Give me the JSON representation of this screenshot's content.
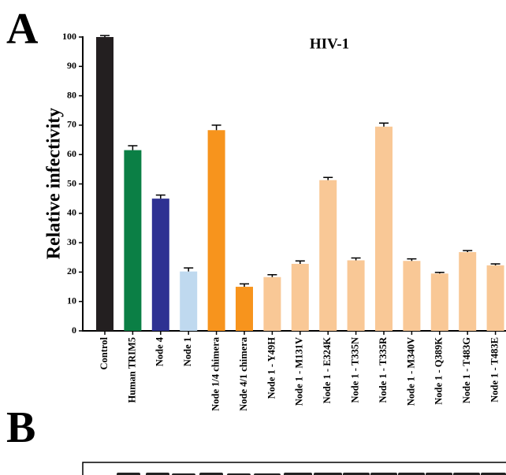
{
  "panel_labels": [
    "A",
    "B"
  ],
  "chart_data": {
    "type": "bar",
    "title": "HIV-1",
    "y_label": "Relative infectivity",
    "categories": [
      "Control",
      "Human TRIM5",
      "Node 4",
      "Node 1",
      "Node 1/4 chimera",
      "Node 4/1 chimera",
      "Node 1 - Y49H",
      "Node 1 - M131V",
      "Node 1 - E324K",
      "Node 1 - T335N",
      "Node 1 - T335R",
      "Node 1 - M340V",
      "Node 1 - Q389K",
      "Node 1 - T483G",
      "Node 1 - T483E"
    ],
    "values": [
      100,
      61.5,
      45,
      20.2,
      68.3,
      15,
      18.3,
      22.8,
      51.3,
      24,
      69.5,
      23.8,
      19.5,
      26.8,
      22.3
    ],
    "errors": [
      0.5,
      1.5,
      1.2,
      1.2,
      1.7,
      1,
      0.8,
      1,
      0.9,
      0.8,
      1.2,
      0.7,
      0.4,
      0.5,
      0.5
    ],
    "colors": [
      "#231f20",
      "#0b7f45",
      "#2e3192",
      "#bfd9ef",
      "#f7941d",
      "#f7941d",
      "#f9c896",
      "#f9c896",
      "#f9c896",
      "#f9c896",
      "#f9c896",
      "#f9c896",
      "#f9c896",
      "#f9c896",
      "#f9c896"
    ],
    "ylim": [
      0,
      100
    ],
    "yticks": [
      0,
      10,
      20,
      30,
      40,
      50,
      60,
      70,
      80,
      90,
      100
    ]
  }
}
